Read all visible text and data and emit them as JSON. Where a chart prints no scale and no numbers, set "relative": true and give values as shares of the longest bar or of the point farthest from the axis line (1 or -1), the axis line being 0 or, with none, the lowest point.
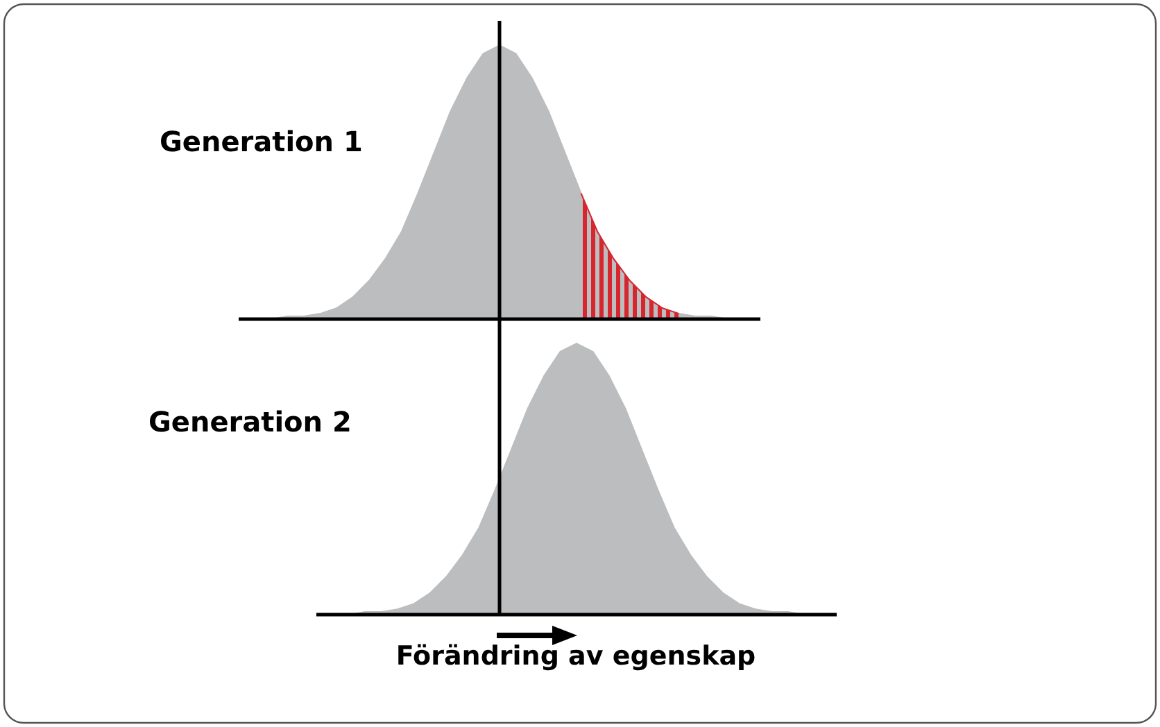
{
  "chart_data": [
    {
      "type": "area",
      "title": "Generation 1",
      "relative": true,
      "tick_labels": false,
      "categories": [
        null,
        null,
        null,
        null,
        null,
        null,
        null,
        null,
        null,
        null,
        null,
        null,
        null,
        null,
        null,
        null,
        null,
        null,
        null,
        null,
        null,
        null,
        null,
        null,
        null,
        null,
        null,
        null,
        null,
        null,
        null,
        null,
        null
      ],
      "series": [
        {
          "type": "area",
          "color": "#bcbdbf",
          "values": [
            0,
            0,
            0,
            0.01,
            0.01,
            0.02,
            0.04,
            0.08,
            0.14,
            0.22,
            0.32,
            0.46,
            0.61,
            0.76,
            0.88,
            0.97,
            1,
            0.97,
            0.88,
            0.76,
            0.61,
            0.46,
            0.32,
            0.22,
            0.14,
            0.08,
            0.04,
            0.02,
            0.01,
            0.01,
            0,
            0,
            0
          ]
        },
        {
          "type": "area",
          "color": "#d7262e",
          "values": [
            null,
            null,
            null,
            null,
            null,
            null,
            null,
            null,
            null,
            null,
            null,
            null,
            null,
            null,
            null,
            null,
            null,
            null,
            null,
            null,
            null,
            0.46,
            0.32,
            0.22,
            0.14,
            0.08,
            0.04,
            0.02,
            null,
            null,
            null,
            null,
            null
          ]
        }
      ]
    },
    {
      "type": "area",
      "title": "Generation 2",
      "xlabel": "Förändring av egenskap",
      "relative": true,
      "tick_labels": false,
      "categories": [
        null,
        null,
        null,
        null,
        null,
        null,
        null,
        null,
        null,
        null,
        null,
        null,
        null,
        null,
        null,
        null,
        null,
        null,
        null,
        null,
        null,
        null,
        null,
        null,
        null,
        null,
        null,
        null,
        null,
        null,
        null,
        null,
        null
      ],
      "series": [
        {
          "type": "area",
          "color": "#bcbdbf",
          "values": [
            0,
            0,
            0,
            0.01,
            0.01,
            0.02,
            0.04,
            0.08,
            0.14,
            0.22,
            0.32,
            0.46,
            0.61,
            0.76,
            0.88,
            0.97,
            1,
            0.97,
            0.88,
            0.76,
            0.61,
            0.46,
            0.32,
            0.22,
            0.14,
            0.08,
            0.04,
            0.02,
            0.01,
            0.01,
            0,
            0,
            0
          ]
        }
      ]
    }
  ]
}
